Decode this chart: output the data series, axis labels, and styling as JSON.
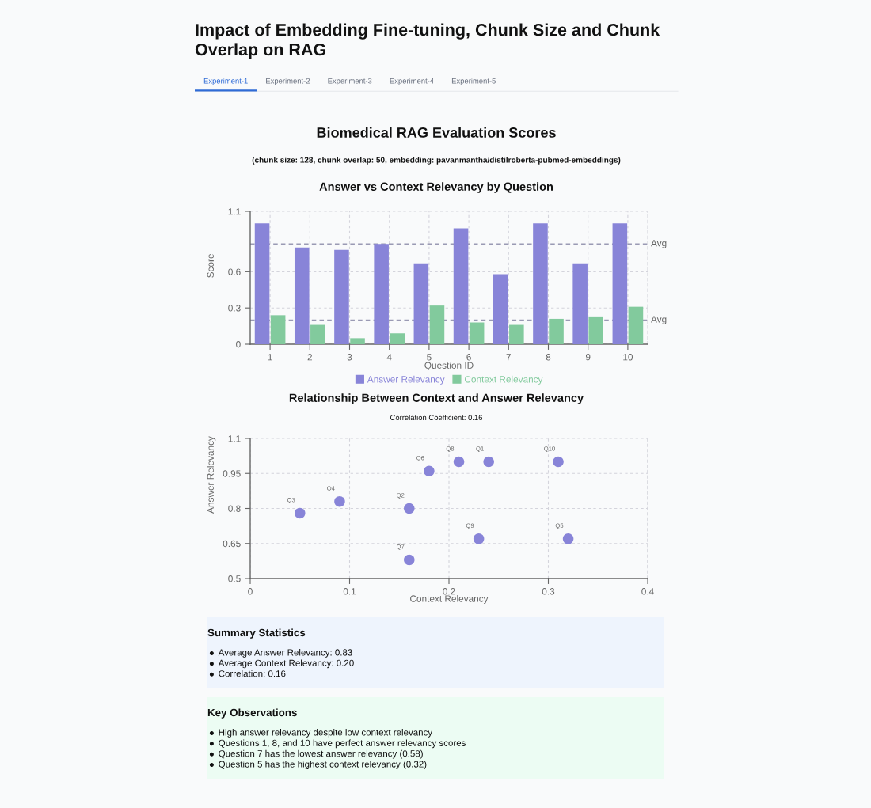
{
  "chart_data": [
    {
      "type": "other",
      "title": "Impact of Embedding Fine-tuning, Chunk Size and Chunk Overlap on RAG",
      "categories": [
        "Experiment-1",
        "Experiment-2",
        "Experiment-3",
        "Experiment-4",
        "Experiment-5"
      ]
    },
    {
      "type": "other",
      "title": "Biomedical RAG Evaluation Scores",
      "subtitle": "(chunk size: 128, chunk overlap: 50, embedding: pavanmantha/distilroberta-pubmed-embeddings)"
    },
    {
      "type": "bar",
      "title": "Answer vs Context Relevancy by Question",
      "xlabel": "Question ID",
      "ylabel": "Score",
      "categories": [
        "1",
        "2",
        "3",
        "4",
        "5",
        "6",
        "7",
        "8",
        "9",
        "10"
      ],
      "series": [
        {
          "name": "Answer Relevancy",
          "color": "#8884d8",
          "values": [
            1.0,
            0.8,
            0.78,
            0.83,
            0.67,
            0.96,
            0.58,
            1.0,
            0.67,
            1.0
          ]
        },
        {
          "name": "Context Relevancy",
          "color": "#82ca9d",
          "values": [
            0.24,
            0.16,
            0.05,
            0.09,
            0.32,
            0.18,
            0.16,
            0.21,
            0.23,
            0.31
          ]
        }
      ],
      "ylim": [
        0,
        1.1
      ],
      "yticks": [
        0,
        0.3,
        0.6,
        1.1
      ],
      "grid": true,
      "legend": "bottom",
      "ref_lines": [
        {
          "axis": "y",
          "value": 0.83,
          "label": "Avg",
          "color": "#9a9ab4",
          "line_style": "dashed"
        },
        {
          "axis": "y",
          "value": 0.2,
          "label": "Avg",
          "color": "#9a9ab4",
          "line_style": "dashed"
        }
      ]
    },
    {
      "type": "scatter",
      "title": "Relationship Between Context and Answer Relevancy",
      "subtitle": "Correlation Coefficient: 0.16",
      "xlabel": "Context Relevancy",
      "ylabel": "Answer Relevancy",
      "series": [
        {
          "color": "#8884d8",
          "x": [
            0.24,
            0.16,
            0.05,
            0.09,
            0.32,
            0.18,
            0.16,
            0.21,
            0.23,
            0.31
          ],
          "values": [
            1.0,
            0.8,
            0.78,
            0.83,
            0.67,
            0.96,
            0.58,
            1.0,
            0.67,
            1.0
          ]
        }
      ],
      "xlim": [
        0,
        0.4
      ],
      "xticks": [
        0,
        0.1,
        0.2,
        0.3,
        0.4
      ],
      "ylim": [
        0.5,
        1.1
      ],
      "yticks": [
        0.5,
        0.65,
        0.8,
        0.95,
        1.1
      ],
      "grid": true,
      "marker": "circle",
      "annotations": [
        {
          "text": "Q1",
          "x": 0.24,
          "y": 1.0
        },
        {
          "text": "Q2",
          "x": 0.16,
          "y": 0.8
        },
        {
          "text": "Q3",
          "x": 0.05,
          "y": 0.78
        },
        {
          "text": "Q4",
          "x": 0.09,
          "y": 0.83
        },
        {
          "text": "Q5",
          "x": 0.32,
          "y": 0.67
        },
        {
          "text": "Q6",
          "x": 0.18,
          "y": 0.96
        },
        {
          "text": "Q7",
          "x": 0.16,
          "y": 0.58
        },
        {
          "text": "Q8",
          "x": 0.21,
          "y": 1.0
        },
        {
          "text": "Q9",
          "x": 0.23,
          "y": 0.67
        },
        {
          "text": "Q10",
          "x": 0.31,
          "y": 1.0
        }
      ]
    },
    {
      "type": "other",
      "title": "Summary Statistics",
      "annotations": [
        "Average Answer Relevancy: 0.83",
        "Average Context Relevancy: 0.20",
        "Correlation: 0.16"
      ]
    },
    {
      "type": "other",
      "title": "Key Observations",
      "annotations": [
        "High answer relevancy despite low context relevancy",
        "Questions 1, 8, and 10 have perfect answer relevancy scores",
        "Question 7 has the lowest answer relevancy (0.58)",
        "Question 5 has the highest context relevancy (0.32)"
      ]
    }
  ]
}
